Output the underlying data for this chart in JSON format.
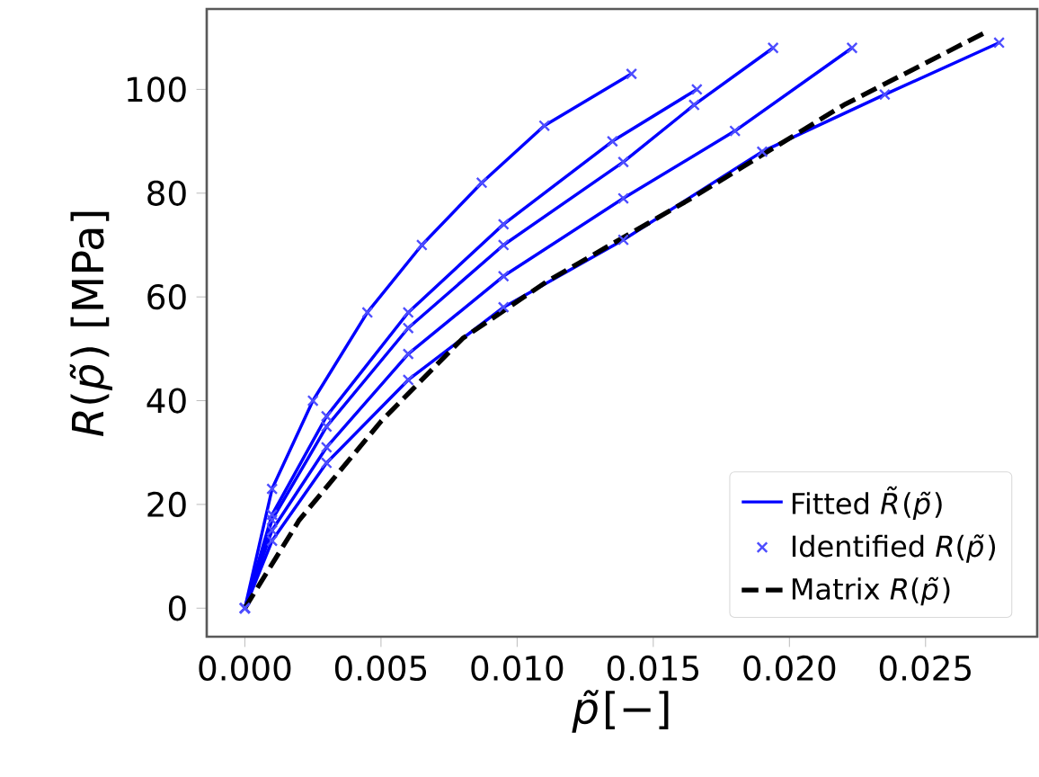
{
  "chart_data": {
    "type": "line",
    "xlabel": "*p̃*[−]",
    "ylabel": "*R*(*p̃*) [MPa]",
    "xlim": [
      -0.0014,
      0.0291
    ],
    "ylim": [
      -5.5,
      115.5
    ],
    "xticks": [
      {
        "value": 0,
        "label": "0.000"
      },
      {
        "value": 0.005,
        "label": "0.005"
      },
      {
        "value": 0.01,
        "label": "0.010"
      },
      {
        "value": 0.015,
        "label": "0.015"
      },
      {
        "value": 0.02,
        "label": "0.020"
      },
      {
        "value": 0.025,
        "label": "0.025"
      }
    ],
    "yticks": [
      0,
      20,
      40,
      60,
      80,
      100
    ],
    "grid": false,
    "legend": "bottom right",
    "series": [
      {
        "name": "Fitted *R̃*(*p̃*)",
        "color": "#0000ff",
        "line_style": "solid",
        "marker": "none",
        "x": [
          0,
          0.001,
          0.0025,
          0.0045,
          0.0065,
          0.0087,
          0.011,
          0.0142
        ],
        "values": [
          0,
          23,
          40,
          57,
          70,
          82,
          93,
          103
        ]
      },
      {
        "color": "#0000ff",
        "line_style": "solid",
        "marker": "none",
        "x": [
          0,
          0.001,
          0.003,
          0.006,
          0.0095,
          0.0135,
          0.0166
        ],
        "values": [
          0,
          18,
          37,
          57,
          74,
          90,
          100
        ]
      },
      {
        "color": "#0000ff",
        "line_style": "solid",
        "marker": "none",
        "x": [
          0,
          0.001,
          0.003,
          0.006,
          0.0095,
          0.0139,
          0.0165,
          0.0194
        ],
        "values": [
          0,
          17,
          35,
          54,
          70,
          86,
          97,
          108
        ]
      },
      {
        "color": "#0000ff",
        "line_style": "solid",
        "marker": "none",
        "x": [
          0,
          0.001,
          0.003,
          0.006,
          0.0095,
          0.0139,
          0.018,
          0.0223
        ],
        "values": [
          0,
          15,
          31,
          49,
          64,
          79,
          92,
          108
        ]
      },
      {
        "color": "#0000ff",
        "line_style": "solid",
        "marker": "none",
        "x": [
          0,
          0.001,
          0.003,
          0.006,
          0.0095,
          0.0139,
          0.019,
          0.0235,
          0.0277
        ],
        "values": [
          0,
          13,
          28,
          44,
          58,
          71,
          88,
          99,
          109
        ]
      },
      {
        "type": "scatter",
        "name": "Identified *R*(*p̃*)",
        "color": "#4d4dff",
        "marker": "cross",
        "x": [
          0,
          0.001,
          0.0025,
          0.0045,
          0.0065,
          0.0087,
          0.011,
          0.0142
        ],
        "values": [
          0,
          23,
          40,
          57,
          70,
          82,
          93,
          103
        ]
      },
      {
        "type": "scatter",
        "color": "#4d4dff",
        "marker": "cross",
        "x": [
          0,
          0.001,
          0.003,
          0.006,
          0.0095,
          0.0135,
          0.0166
        ],
        "values": [
          0,
          18,
          37,
          57,
          74,
          90,
          100
        ]
      },
      {
        "type": "scatter",
        "color": "#4d4dff",
        "marker": "cross",
        "x": [
          0,
          0.001,
          0.003,
          0.006,
          0.0095,
          0.0139,
          0.0165,
          0.0194
        ],
        "values": [
          0,
          17,
          35,
          54,
          70,
          86,
          97,
          108
        ]
      },
      {
        "type": "scatter",
        "color": "#4d4dff",
        "marker": "cross",
        "x": [
          0,
          0.001,
          0.003,
          0.006,
          0.0095,
          0.0139,
          0.018,
          0.0223
        ],
        "values": [
          0,
          15,
          31,
          49,
          64,
          79,
          92,
          108
        ]
      },
      {
        "type": "scatter",
        "color": "#4d4dff",
        "marker": "cross",
        "x": [
          0,
          0.001,
          0.003,
          0.006,
          0.0095,
          0.0139,
          0.019,
          0.0235,
          0.0277
        ],
        "values": [
          0,
          13,
          28,
          44,
          58,
          71,
          88,
          99,
          109
        ]
      },
      {
        "name": "Matrix *R*(*p̃*)",
        "color": "#000000",
        "line_style": "dashed",
        "marker": "none",
        "x": [
          0,
          0.002,
          0.005,
          0.008,
          0.0111,
          0.0164,
          0.022,
          0.0272
        ],
        "values": [
          0,
          17,
          36,
          52,
          63,
          79,
          97,
          111
        ]
      }
    ]
  }
}
